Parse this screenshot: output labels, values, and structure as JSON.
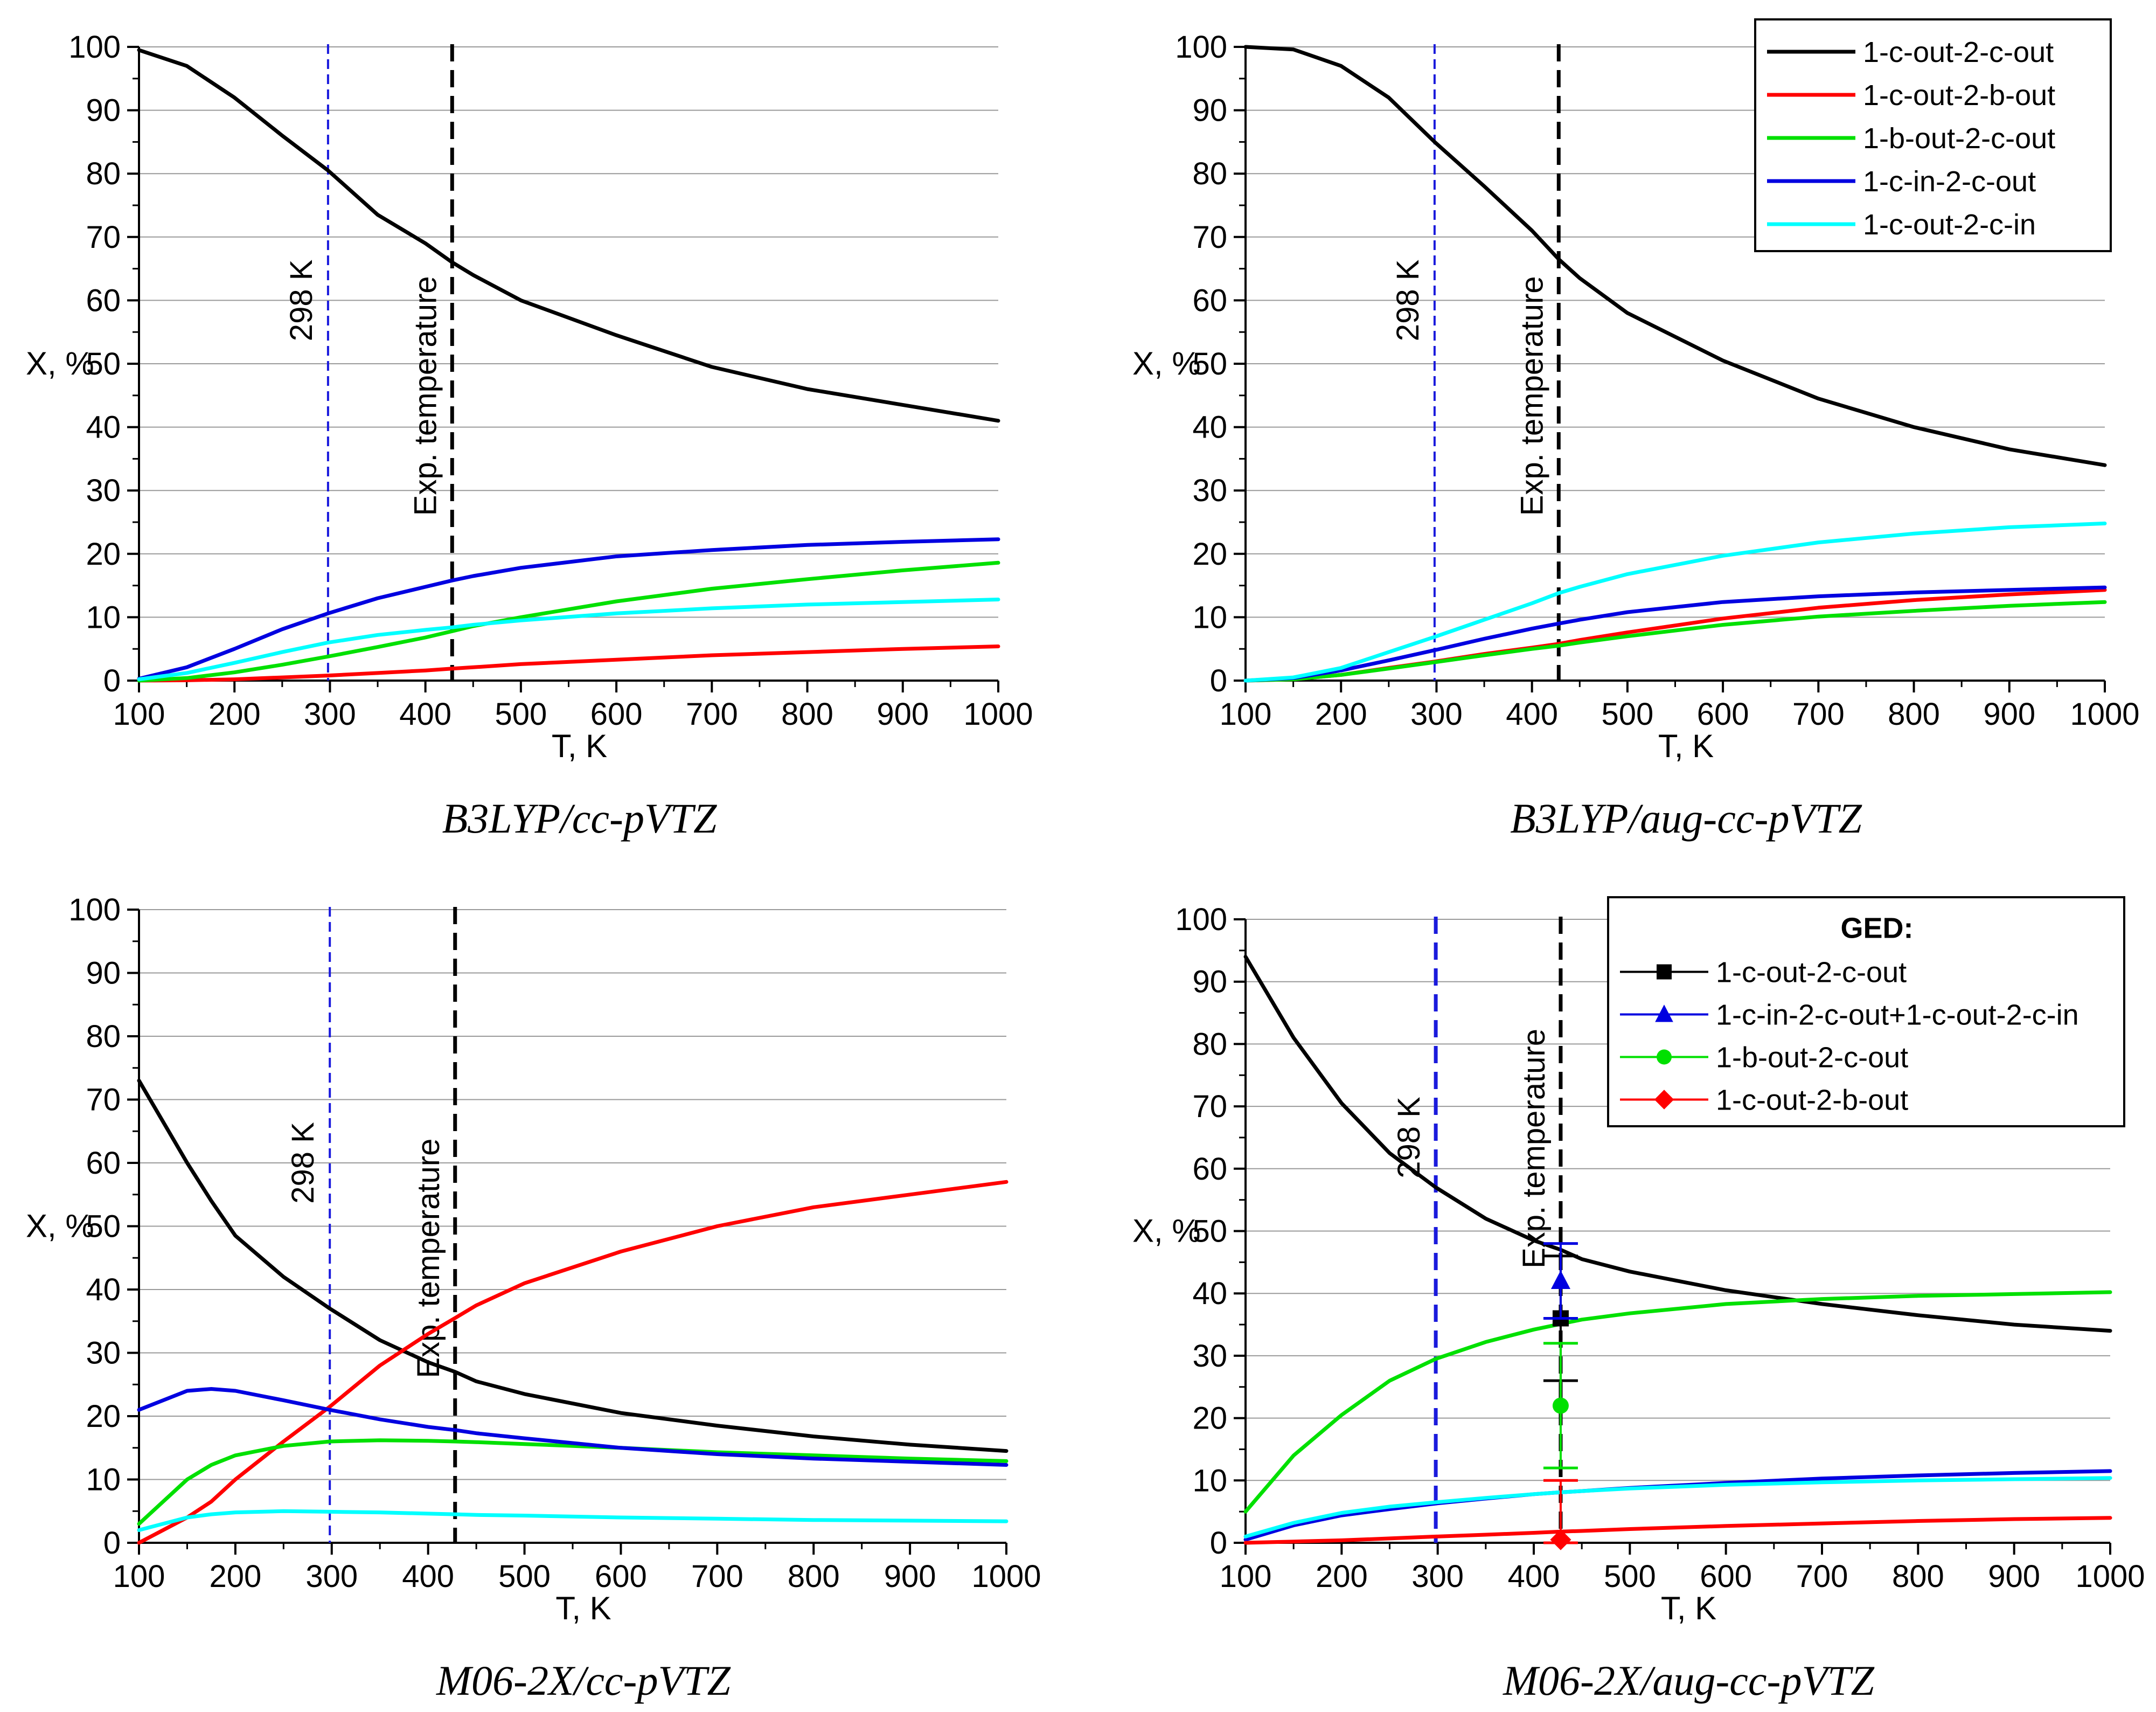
{
  "chart_data": [
    {
      "type": "line",
      "caption": "B3LYP/cc-pVTZ",
      "xlabel": "T, K",
      "ylabel": "X, %",
      "xlim": [
        100,
        1000
      ],
      "ylim": [
        0,
        100
      ],
      "xticks": [
        100,
        200,
        300,
        400,
        500,
        600,
        700,
        800,
        900,
        1000
      ],
      "yticks": [
        0,
        10,
        20,
        30,
        40,
        50,
        60,
        70,
        80,
        90,
        100
      ],
      "grid": true,
      "vlines": [
        {
          "x": 298,
          "label": "298 K",
          "color": "#1a1adc",
          "style": "thin-dashed"
        },
        {
          "x": 428,
          "label": "Exp. temperature",
          "color": "#000000",
          "style": "thick-dashed"
        }
      ],
      "x": [
        100,
        150,
        200,
        250,
        298,
        350,
        400,
        428,
        450,
        500,
        600,
        700,
        800,
        900,
        1000
      ],
      "series": [
        {
          "name": "1-c-out-2-c-out",
          "color": "#000000",
          "values": [
            99.5,
            97,
            92,
            86,
            80.5,
            73.5,
            69,
            66,
            64,
            60,
            54.5,
            49.5,
            46,
            43.5,
            41
          ]
        },
        {
          "name": "1-c-out-2-b-out",
          "color": "#ff0000",
          "values": [
            0,
            0.05,
            0.2,
            0.5,
            0.8,
            1.2,
            1.6,
            1.9,
            2.1,
            2.6,
            3.3,
            4,
            4.5,
            5,
            5.4
          ]
        },
        {
          "name": "1-b-out-2-c-out",
          "color": "#00e000",
          "values": [
            0,
            0.4,
            1.3,
            2.5,
            3.8,
            5.3,
            6.8,
            7.8,
            8.6,
            10,
            12.5,
            14.5,
            16,
            17.4,
            18.6
          ]
        },
        {
          "name": "1-c-in-2-c-out",
          "color": "#0000e0",
          "values": [
            0.3,
            2.1,
            5,
            8.1,
            10.6,
            13,
            14.8,
            15.8,
            16.5,
            17.8,
            19.6,
            20.6,
            21.4,
            21.9,
            22.3
          ]
        },
        {
          "name": "1-c-out-2-c-in",
          "color": "#00ffff",
          "values": [
            0.2,
            1.2,
            2.8,
            4.5,
            6,
            7.2,
            8,
            8.4,
            8.8,
            9.5,
            10.6,
            11.4,
            12,
            12.4,
            12.8
          ]
        }
      ]
    },
    {
      "type": "line",
      "caption": "B3LYP/aug-cc-pVTZ",
      "xlabel": "T, K",
      "ylabel": "X, %",
      "xlim": [
        100,
        1000
      ],
      "ylim": [
        0,
        100
      ],
      "xticks": [
        100,
        200,
        300,
        400,
        500,
        600,
        700,
        800,
        900,
        1000
      ],
      "yticks": [
        0,
        10,
        20,
        30,
        40,
        50,
        60,
        70,
        80,
        90,
        100
      ],
      "grid": true,
      "legend": {
        "position": "top-right",
        "entries": [
          "1-c-out-2-c-out",
          "1-c-out-2-b-out",
          "1-b-out-2-c-out",
          "1-c-in-2-c-out",
          "1-c-out-2-c-in"
        ]
      },
      "vlines": [
        {
          "x": 298,
          "label": "298 K",
          "color": "#1a1adc",
          "style": "thin-dashed"
        },
        {
          "x": 428,
          "label": "Exp. temperature",
          "color": "#000000",
          "style": "thick-dashed"
        }
      ],
      "x": [
        100,
        150,
        200,
        250,
        298,
        350,
        400,
        428,
        450,
        500,
        600,
        700,
        800,
        900,
        1000
      ],
      "series": [
        {
          "name": "1-c-out-2-c-out",
          "color": "#000000",
          "values": [
            100,
            99.6,
            97,
            92,
            85,
            78,
            71,
            66.5,
            63.5,
            58,
            50.5,
            44.5,
            40,
            36.5,
            34
          ]
        },
        {
          "name": "1-c-out-2-b-out",
          "color": "#ff0000",
          "values": [
            0,
            0.2,
            0.9,
            2,
            3,
            4.2,
            5.2,
            5.8,
            6.4,
            7.6,
            9.8,
            11.5,
            12.7,
            13.6,
            14.3
          ]
        },
        {
          "name": "1-b-out-2-c-out",
          "color": "#00e000",
          "values": [
            0,
            0.2,
            0.9,
            1.9,
            2.9,
            4,
            5,
            5.5,
            6,
            7,
            8.8,
            10.1,
            11,
            11.8,
            12.4
          ]
        },
        {
          "name": "1-c-in-2-c-out",
          "color": "#0000e0",
          "values": [
            0,
            0.4,
            1.6,
            3.2,
            4.8,
            6.6,
            8.2,
            9,
            9.6,
            10.8,
            12.4,
            13.3,
            13.9,
            14.3,
            14.7
          ]
        },
        {
          "name": "1-c-out-2-c-in",
          "color": "#00ffff",
          "values": [
            0,
            0.5,
            2,
            4.5,
            6.9,
            9.6,
            12.2,
            13.8,
            14.8,
            16.8,
            19.7,
            21.8,
            23.2,
            24.2,
            24.8
          ]
        }
      ]
    },
    {
      "type": "line",
      "caption": "M06-2X/cc-pVTZ",
      "xlabel": "T, K",
      "ylabel": "X, %",
      "xlim": [
        100,
        1000
      ],
      "ylim": [
        0,
        100
      ],
      "xticks": [
        100,
        200,
        300,
        400,
        500,
        600,
        700,
        800,
        900,
        1000
      ],
      "yticks": [
        0,
        10,
        20,
        30,
        40,
        50,
        60,
        70,
        80,
        90,
        100
      ],
      "grid": true,
      "vlines": [
        {
          "x": 298,
          "label": "298 K",
          "color": "#1a1adc",
          "style": "thin-dashed"
        },
        {
          "x": 428,
          "label": "Exp. temperature",
          "color": "#000000",
          "style": "thick-dashed"
        }
      ],
      "x": [
        100,
        150,
        175,
        200,
        250,
        298,
        350,
        400,
        428,
        450,
        500,
        600,
        700,
        800,
        900,
        1000
      ],
      "series": [
        {
          "name": "1-c-out-2-c-out",
          "color": "#000000",
          "values": [
            73,
            60,
            54,
            48.5,
            42,
            37,
            32,
            28.5,
            27,
            25.5,
            23.5,
            20.5,
            18.5,
            16.8,
            15.5,
            14.5
          ]
        },
        {
          "name": "1-c-out-2-b-out",
          "color": "#ff0000",
          "values": [
            0,
            4,
            6.5,
            10,
            16,
            21.5,
            28,
            33,
            35.5,
            37.5,
            41,
            46,
            50,
            53,
            55,
            57
          ]
        },
        {
          "name": "1-b-out-2-c-out",
          "color": "#00e000",
          "values": [
            3,
            10,
            12.3,
            13.8,
            15.3,
            16,
            16.2,
            16.1,
            16,
            15.9,
            15.6,
            15,
            14.3,
            13.8,
            13.3,
            12.9
          ]
        },
        {
          "name": "1-c-in-2-c-out",
          "color": "#0000e0",
          "values": [
            21,
            24,
            24.3,
            24,
            22.5,
            21,
            19.5,
            18.3,
            17.8,
            17.3,
            16.5,
            15,
            14,
            13.3,
            12.8,
            12.3
          ]
        },
        {
          "name": "1-c-out-2-c-in",
          "color": "#00ffff",
          "values": [
            2,
            4,
            4.5,
            4.8,
            5,
            4.9,
            4.8,
            4.6,
            4.5,
            4.4,
            4.3,
            4,
            3.8,
            3.6,
            3.5,
            3.4
          ]
        }
      ]
    },
    {
      "type": "line",
      "caption": "M06-2X/aug-cc-pVTZ",
      "xlabel": "T, K",
      "ylabel": "X, %",
      "xlim": [
        100,
        1000
      ],
      "ylim": [
        0,
        100
      ],
      "xticks": [
        100,
        200,
        300,
        400,
        500,
        600,
        700,
        800,
        900,
        1000
      ],
      "yticks": [
        0,
        10,
        20,
        30,
        40,
        50,
        60,
        70,
        80,
        90,
        100
      ],
      "grid": true,
      "legend": {
        "position": "top-right",
        "title": "GED:",
        "entries": [
          "1-c-out-2-c-out",
          "1-c-in-2-c-out+1-c-out-2-c-in",
          "1-b-out-2-c-out",
          "1-c-out-2-b-out"
        ]
      },
      "vlines": [
        {
          "x": 298,
          "label": "298 K",
          "color": "#1a1adc",
          "style": "thick-dashed"
        },
        {
          "x": 428,
          "label": "Exp. temperature",
          "color": "#000000",
          "style": "thick-dashed"
        }
      ],
      "x": [
        100,
        150,
        200,
        250,
        298,
        350,
        400,
        428,
        450,
        500,
        600,
        700,
        800,
        900,
        1000
      ],
      "series": [
        {
          "name": "1-c-out-2-c-out",
          "color": "#000000",
          "values": [
            94,
            81,
            70.5,
            62.5,
            57,
            52,
            48.5,
            47,
            45.5,
            43.5,
            40.5,
            38.3,
            36.5,
            35,
            34
          ]
        },
        {
          "name": "1-b-out-2-c-out",
          "color": "#00e000",
          "values": [
            5,
            14,
            20.5,
            26,
            29.5,
            32.2,
            34.2,
            35.1,
            35.8,
            36.8,
            38.3,
            39.1,
            39.6,
            39.9,
            40.2
          ]
        },
        {
          "name": "1-c-in-2-c-out",
          "color": "#0000e0",
          "values": [
            0.5,
            2.8,
            4.4,
            5.4,
            6.3,
            7.1,
            7.8,
            8.1,
            8.3,
            8.8,
            9.6,
            10.3,
            10.8,
            11.2,
            11.5
          ]
        },
        {
          "name": "1-c-out-2-c-in",
          "color": "#00ffff",
          "values": [
            1,
            3.2,
            4.8,
            5.8,
            6.5,
            7.2,
            7.8,
            8.1,
            8.3,
            8.7,
            9.3,
            9.7,
            10,
            10.2,
            10.4
          ]
        },
        {
          "name": "1-c-out-2-b-out",
          "color": "#ff0000",
          "values": [
            0,
            0.2,
            0.4,
            0.7,
            1,
            1.3,
            1.6,
            1.8,
            1.9,
            2.2,
            2.7,
            3.1,
            3.5,
            3.8,
            4
          ]
        }
      ],
      "experimental": [
        {
          "name": "1-c-out-2-c-out",
          "marker": "square",
          "color": "#000000",
          "x": 428,
          "y": 36,
          "err_low": 26,
          "err_high": 46
        },
        {
          "name": "1-c-in-2-c-out+1-c-out-2-c-in",
          "marker": "triangle",
          "color": "#0000e0",
          "x": 428,
          "y": 42,
          "err_low": 36,
          "err_high": 48
        },
        {
          "name": "1-b-out-2-c-out",
          "marker": "circle",
          "color": "#00e000",
          "x": 428,
          "y": 22,
          "err_low": 12,
          "err_high": 32
        },
        {
          "name": "1-c-out-2-b-out",
          "marker": "diamond",
          "color": "#ff0000",
          "x": 428,
          "y": 0.5,
          "err_low": 0,
          "err_high": 10
        }
      ]
    }
  ]
}
